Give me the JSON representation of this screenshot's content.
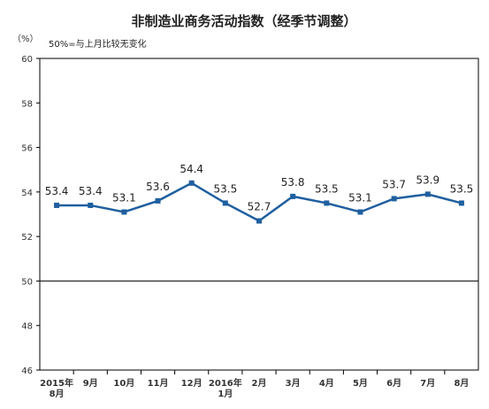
{
  "chart_data": {
    "type": "line",
    "title": "非制造业商务活动指数（经季节调整）",
    "unit": "（%）",
    "note": "50%=与上月比较无变化",
    "categories": [
      [
        "2015年",
        "8月"
      ],
      [
        "9月"
      ],
      [
        "10月"
      ],
      [
        "11月"
      ],
      [
        "12月"
      ],
      [
        "2016年",
        "1月"
      ],
      [
        "2月"
      ],
      [
        "3月"
      ],
      [
        "4月"
      ],
      [
        "5月"
      ],
      [
        "6月"
      ],
      [
        "7月"
      ],
      [
        "8月"
      ]
    ],
    "series": [
      {
        "values": [
          53.4,
          53.4,
          53.1,
          53.6,
          54.4,
          53.5,
          52.7,
          53.8,
          53.5,
          53.1,
          53.7,
          53.9,
          53.5
        ]
      }
    ],
    "data_labels": [
      "53.4",
      "53.4",
      "53.1",
      "53.6",
      "54.4",
      "53.5",
      "52.7",
      "53.8",
      "53.5",
      "53.1",
      "53.7",
      "53.9",
      "53.5"
    ],
    "ylim": [
      46,
      60
    ],
    "yticks": [
      "46",
      "48",
      "50",
      "52",
      "54",
      "56",
      "58",
      "60"
    ],
    "reference_line": 50,
    "colors": {
      "line": "#1f5f9f",
      "axis": "#000000"
    }
  }
}
